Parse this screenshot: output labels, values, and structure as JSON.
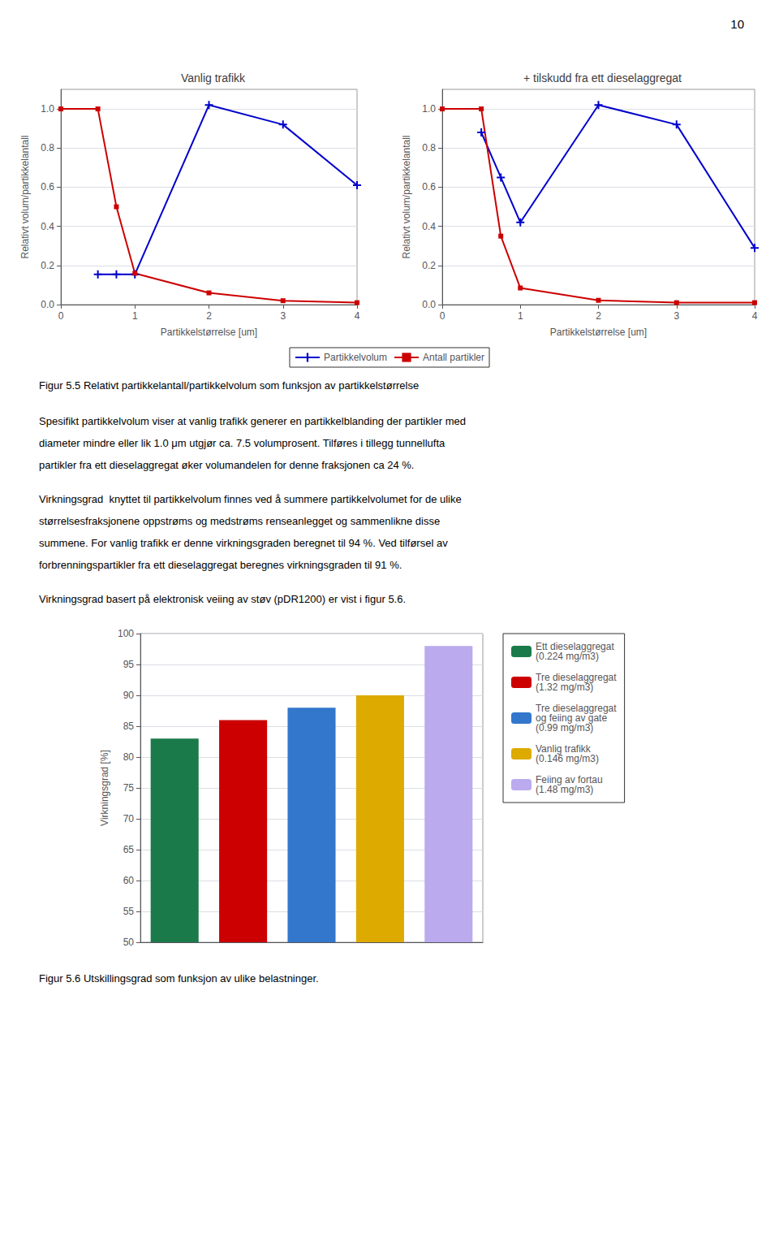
{
  "chart_data": [
    {
      "type": "line",
      "title": "Vanlig trafikk",
      "xlabel": "Partikkelstørrelse [um]",
      "ylabel": "Relativt volum/partikkelantall",
      "xlim": [
        0,
        4
      ],
      "xticks": [
        0,
        1,
        2,
        3,
        4
      ],
      "ylim": [
        0.0,
        1.1
      ],
      "yticks": [
        {
          "value": 0.0,
          "label": "0.0"
        },
        0.2,
        0.4,
        0.6,
        0.8,
        {
          "value": 1.0,
          "label": "1.0"
        }
      ],
      "grid": true,
      "legend": "bottom",
      "series": [
        {
          "name": "Partikkelvolum",
          "color": "#0000cc",
          "marker": "plus",
          "x": [
            0.5,
            0.75,
            1.0,
            2.0,
            3.0,
            4.0
          ],
          "values": [
            0.155,
            0.155,
            0.155,
            1.02,
            0.92,
            0.61
          ]
        },
        {
          "name": "Antall partikler",
          "color": "#cc0000",
          "marker": "square",
          "x": [
            0.0,
            0.5,
            0.75,
            1.0,
            2.0,
            3.0,
            4.0
          ],
          "values": [
            1.0,
            1.0,
            0.5,
            0.16,
            0.06,
            0.02,
            0.01
          ]
        }
      ]
    },
    {
      "type": "line",
      "title": "+ tilskudd fra ett dieselaggregat",
      "xlabel": "Partikkelstørrelse [um]",
      "ylabel": "Relativt volum/partikkelantall",
      "xlim": [
        0,
        4
      ],
      "xticks": [
        0,
        1,
        2,
        3,
        4
      ],
      "ylim": [
        0.0,
        1.1
      ],
      "yticks": [
        {
          "value": 0.0,
          "label": "0.0"
        },
        0.2,
        0.4,
        0.6,
        0.8,
        {
          "value": 1.0,
          "label": "1.0"
        }
      ],
      "grid": true,
      "legend": "bottom",
      "series": [
        {
          "name": "Partikkelvolum",
          "color": "#0000cc",
          "marker": "plus",
          "x": [
            0.5,
            0.75,
            1.0,
            2.0,
            3.0,
            4.0
          ],
          "values": [
            0.88,
            0.65,
            0.42,
            1.02,
            0.92,
            0.29
          ]
        },
        {
          "name": "Antall partikler",
          "color": "#cc0000",
          "marker": "square",
          "x": [
            0.0,
            0.5,
            0.75,
            1.0,
            2.0,
            3.0,
            4.0
          ],
          "values": [
            1.0,
            1.0,
            0.35,
            0.085,
            0.022,
            0.01,
            0.01
          ]
        }
      ]
    },
    {
      "type": "bar",
      "categories": [
        "Ett dieselaggregat\n(0.224 mg/m3)",
        "Tre dieselaggregat\n(1.32 mg/m3)",
        "Tre dieselaggregat\nog feiing av gate\n(0.99 mg/m3)",
        "Vanlig trafikk\n(0.146 mg/m3)",
        "Feiing av fortau\n(1.48 mg/m3)"
      ],
      "values": [
        83,
        86,
        88,
        90,
        98
      ],
      "colors": [
        "#1a7a4a",
        "#cc0000",
        "#3377cc",
        "#ddaa00",
        "#bbaaee"
      ],
      "ylabel": "Virkningsgrad [%]",
      "ylim": [
        50,
        100
      ],
      "yticks": [
        50,
        55,
        60,
        65,
        70,
        75,
        80,
        85,
        90,
        95,
        100
      ],
      "grid": true,
      "legend": "right",
      "tick_labels": "y"
    }
  ],
  "annotations": [
    "10",
    "Figur 5.5 Relativt partikkelantall/partikkelvolum som funksjon av partikkelstørrelse",
    "Spesifikt partikkelvolum viser at vanlig trafikk generer en partikkelblanding der partikler med",
    "diameter mindre eller lik 1.0 μm utgjør ca. 7.5 volumprosent. Tilføres i tillegg tunnellufta",
    "partikler fra ett dieselaggregat øker volumandelen for denne fraksjonen ca 24 %.",
    "Virkningsgrad  knyttet til partikkelvolum finnes ved å summere partikkelvolumet for de ulike",
    "størrelsesfraksjonene oppstrøms og medstrøms renseanlegget og sammenlikne disse",
    "summene. For vanlig trafikk er denne virkningsgraden beregnet til 94 %. Ved tilførsel av",
    "forbrenningspartikler fra ett dieselaggregat beregnes virkningsgraden til 91 %.",
    "Virkningsgrad basert på elektronisk veiing av støv (pDR1200) er vist i figur 5.6.",
    "Figur 5.6 Utskillingsgrad som funksjon av ulike belastninger."
  ]
}
